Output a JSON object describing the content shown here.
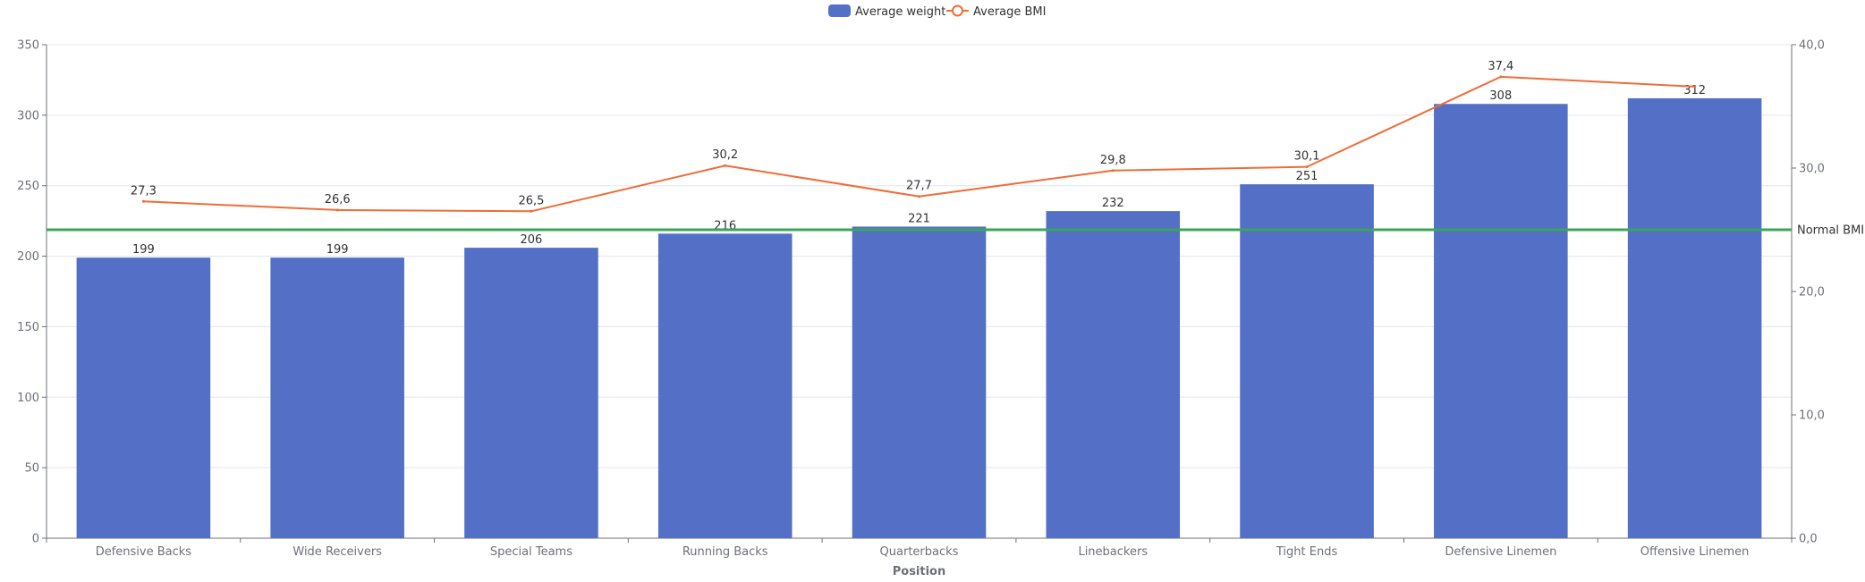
{
  "chart_data": {
    "type": "bar",
    "title": "",
    "xlabel": "Position",
    "ylabel": "",
    "ylabel_right": "",
    "categories": [
      "Defensive Backs",
      "Wide Receivers",
      "Special Teams",
      "Running Backs",
      "Quarterbacks",
      "Linebackers",
      "Tight Ends",
      "Defensive Linemen",
      "Offensive Linemen"
    ],
    "series": [
      {
        "name": "Average weight",
        "type": "bar",
        "axis": "left",
        "values": [
          199,
          199,
          206,
          216,
          221,
          232,
          251,
          308,
          312
        ],
        "labels": [
          "199",
          "199",
          "206",
          "216",
          "221",
          "232",
          "251",
          "308",
          "312"
        ]
      },
      {
        "name": "Average BMI",
        "type": "line",
        "axis": "right",
        "values": [
          27.3,
          26.6,
          26.5,
          30.2,
          27.7,
          29.8,
          30.1,
          37.4,
          36.6
        ],
        "labels": [
          "27,3",
          "26,6",
          "26,5",
          "30,2",
          "27,7",
          "29,8",
          "30,1",
          "37,4",
          ""
        ]
      }
    ],
    "ylim": [
      0,
      350
    ],
    "yticks": [
      0,
      50,
      100,
      150,
      200,
      250,
      300,
      350
    ],
    "ytick_labels": [
      "0",
      "50",
      "100",
      "150",
      "200",
      "250",
      "300",
      "350"
    ],
    "ylim_right": [
      0,
      40
    ],
    "yticks_right": [
      0,
      10,
      20,
      30,
      40
    ],
    "ytick_labels_right": [
      "0,0",
      "10,0",
      "20,0",
      "30,0",
      "40,0"
    ],
    "reference_line": {
      "label": "Normal BMI",
      "value": 25,
      "axis": "right"
    },
    "grid": true,
    "legend_position": "top-center",
    "colors": {
      "bar": "#5470c6",
      "line": "#ee6d38",
      "reference": "#3ba55d",
      "grid": "#e0e6f1",
      "axis": "#6e7079"
    }
  }
}
